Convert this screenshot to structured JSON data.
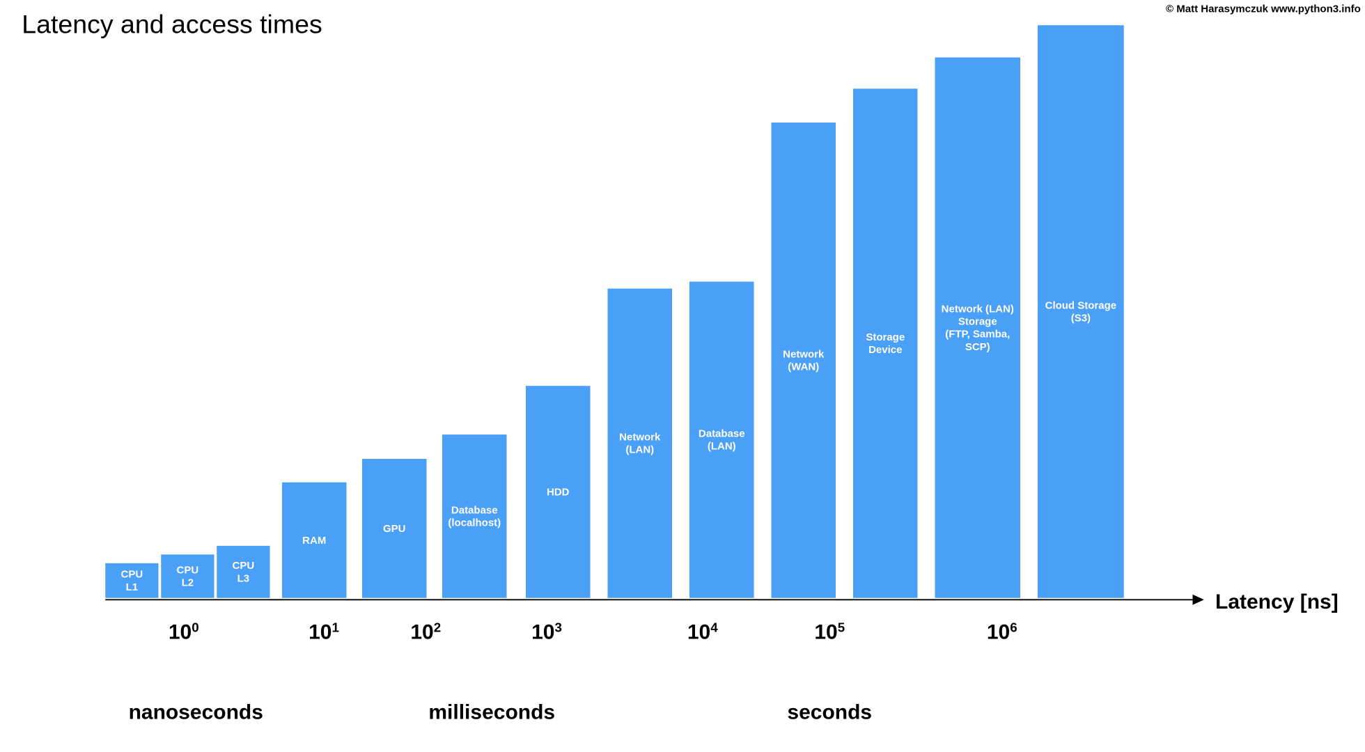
{
  "chart_data": {
    "type": "bar",
    "title": "Latency and access times",
    "credit": "© Matt Harasymczuk www.python3.info",
    "x_axis_title": "Latency [ns]",
    "color": "#4a9ff7",
    "categories": [
      [
        "CPU",
        "L1"
      ],
      [
        "CPU",
        "L2"
      ],
      [
        "CPU",
        "L3"
      ],
      [
        "RAM"
      ],
      [
        "GPU"
      ],
      [
        "Database",
        "(localhost)"
      ],
      [
        "HDD"
      ],
      [
        "Network",
        "(LAN)"
      ],
      [
        "Database",
        "(LAN)"
      ],
      [
        "Network",
        "(WAN)"
      ],
      [
        "Storage",
        "Device"
      ],
      [
        "Network (LAN)",
        "Storage",
        "(FTP, Samba,",
        "SCP)"
      ],
      [
        "Cloud Storage",
        "(S3)"
      ]
    ],
    "values": [
      40,
      50,
      60,
      133,
      160,
      188,
      244,
      356,
      364,
      547,
      586,
      622,
      659
    ],
    "ylim": [
      0,
      660
    ],
    "x_axis_labels": [
      {
        "base": "10",
        "exponent": "0"
      },
      {
        "base": "10",
        "exponent": "1"
      },
      {
        "base": "10",
        "exponent": "2"
      },
      {
        "base": "10",
        "exponent": "3"
      },
      {
        "base": "10",
        "exponent": "4"
      },
      {
        "base": "10",
        "exponent": "5"
      },
      {
        "base": "10",
        "exponent": "6"
      }
    ],
    "unit_labels": [
      "nanoseconds",
      "milliseconds",
      "seconds"
    ]
  }
}
